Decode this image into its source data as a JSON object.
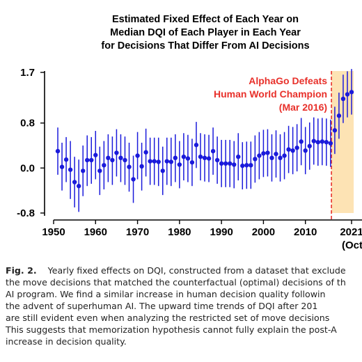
{
  "chart_data": {
    "type": "scatter",
    "title_lines": [
      "Estimated Fixed Effect of Each Year on",
      "Median DQI of Each Player in Each Year",
      "for Decisions That Differ From AI Decisions"
    ],
    "xlabel": "",
    "ylabel": "",
    "xlim": [
      1950,
      2021.5
    ],
    "ylim": [
      -0.8,
      1.7
    ],
    "y_ticks": [
      "1.7",
      "0.8",
      "0.0",
      "-0.8"
    ],
    "y_tick_values": [
      1.7,
      0.8,
      0.0,
      -0.8
    ],
    "x_ticks": [
      "1950",
      "1960",
      "1970",
      "1980",
      "1990",
      "2000",
      "2010",
      "2021"
    ],
    "x_tick_values": [
      1950,
      1960,
      1970,
      1980,
      1990,
      2000,
      2010,
      2021
    ],
    "x_tick_sublabel": "(Oct",
    "grid": false,
    "series": [
      {
        "x": [
          1951,
          1952,
          1953,
          1954,
          1955,
          1956,
          1957,
          1958,
          1959,
          1960,
          1961,
          1962,
          1963,
          1964,
          1965,
          1966,
          1967,
          1968,
          1969,
          1970,
          1971,
          1972,
          1973,
          1974,
          1975,
          1976,
          1977,
          1978,
          1979,
          1980,
          1981,
          1982,
          1983,
          1984,
          1985,
          1986,
          1987,
          1988,
          1989,
          1990,
          1991,
          1992,
          1993,
          1994,
          1995,
          1996,
          1997,
          1998,
          1999,
          2000,
          2001,
          2002,
          2003,
          2004,
          2005,
          2006,
          2007,
          2008,
          2009,
          2010,
          2011,
          2012,
          2013,
          2014,
          2015,
          2016,
          2017,
          2018,
          2019,
          2020,
          2021
        ],
        "y": [
          0.3,
          0.02,
          0.15,
          -0.03,
          -0.25,
          -0.32,
          -0.05,
          0.14,
          0.14,
          0.23,
          -0.05,
          0.05,
          0.18,
          0.14,
          0.27,
          0.18,
          0.14,
          0.02,
          -0.2,
          0.22,
          0.03,
          0.28,
          0.12,
          0.12,
          0.11,
          -0.05,
          0.12,
          0.11,
          0.18,
          0.06,
          0.2,
          0.17,
          0.1,
          0.41,
          0.2,
          0.18,
          0.17,
          0.3,
          0.14,
          0.08,
          0.08,
          0.08,
          0.06,
          0.2,
          0.04,
          0.05,
          0.05,
          0.16,
          0.22,
          0.26,
          0.27,
          0.18,
          0.25,
          0.18,
          0.22,
          0.33,
          0.31,
          0.36,
          0.47,
          0.31,
          0.39,
          0.48,
          0.46,
          0.47,
          0.46,
          0.44,
          0.67,
          0.93,
          1.23,
          1.31,
          1.35
        ],
        "ci_low": [
          -0.12,
          -0.4,
          -0.25,
          -0.55,
          -0.7,
          -0.78,
          -0.5,
          -0.32,
          -0.28,
          -0.2,
          -0.48,
          -0.38,
          -0.25,
          -0.3,
          -0.15,
          -0.25,
          -0.3,
          -0.42,
          -0.62,
          -0.2,
          -0.4,
          -0.15,
          -0.3,
          -0.3,
          -0.32,
          -0.48,
          -0.3,
          -0.32,
          -0.25,
          -0.36,
          -0.22,
          -0.25,
          -0.32,
          0.0,
          -0.22,
          -0.24,
          -0.25,
          -0.12,
          -0.28,
          -0.34,
          -0.34,
          -0.34,
          -0.36,
          -0.22,
          -0.38,
          -0.37,
          -0.37,
          -0.26,
          -0.2,
          -0.16,
          -0.15,
          -0.24,
          -0.17,
          -0.24,
          -0.2,
          -0.09,
          -0.11,
          -0.06,
          0.05,
          -0.11,
          -0.03,
          0.06,
          0.04,
          0.05,
          0.04,
          0.02,
          0.25,
          0.52,
          0.8,
          0.9,
          0.95
        ],
        "ci_high": [
          0.72,
          0.45,
          0.55,
          0.48,
          0.2,
          0.15,
          0.4,
          0.58,
          0.55,
          0.66,
          0.38,
          0.48,
          0.6,
          0.56,
          0.69,
          0.6,
          0.56,
          0.45,
          0.22,
          0.64,
          0.45,
          0.7,
          0.54,
          0.54,
          0.54,
          0.38,
          0.54,
          0.54,
          0.6,
          0.48,
          0.62,
          0.59,
          0.52,
          0.82,
          0.62,
          0.6,
          0.59,
          0.72,
          0.56,
          0.5,
          0.5,
          0.5,
          0.48,
          0.62,
          0.46,
          0.47,
          0.47,
          0.58,
          0.64,
          0.68,
          0.69,
          0.6,
          0.67,
          0.6,
          0.64,
          0.75,
          0.73,
          0.78,
          0.89,
          0.73,
          0.81,
          0.9,
          0.88,
          0.89,
          0.88,
          0.86,
          1.09,
          1.34,
          1.66,
          1.72,
          1.76
        ],
        "color": "#1a1adb"
      }
    ],
    "event_line": {
      "x": 2016.2,
      "color": "#e8302a",
      "label_lines": [
        "AlphaGo Defeats",
        "Human World Champion",
        "(Mar 2016)"
      ]
    },
    "shaded_region": {
      "x_start": 2016.2,
      "x_end": 2021.5,
      "color": "#fde3b4"
    }
  },
  "caption": {
    "fig_label": "Fig. 2.",
    "lines": [
      "Yearly fixed effects on DQI, constructed from a dataset that exclude",
      "the move decisions that matched the counterfactual (optimal) decisions of th",
      "AI program. We find a similar increase in human decision quality followin",
      "the advent of superhuman AI. The upward time trends of DQI after 201",
      "are still evident even when analyzing the restricted set of move decisions",
      "This suggests that memorization hypothesis cannot fully explain the post-A",
      "increase in decision quality."
    ]
  }
}
